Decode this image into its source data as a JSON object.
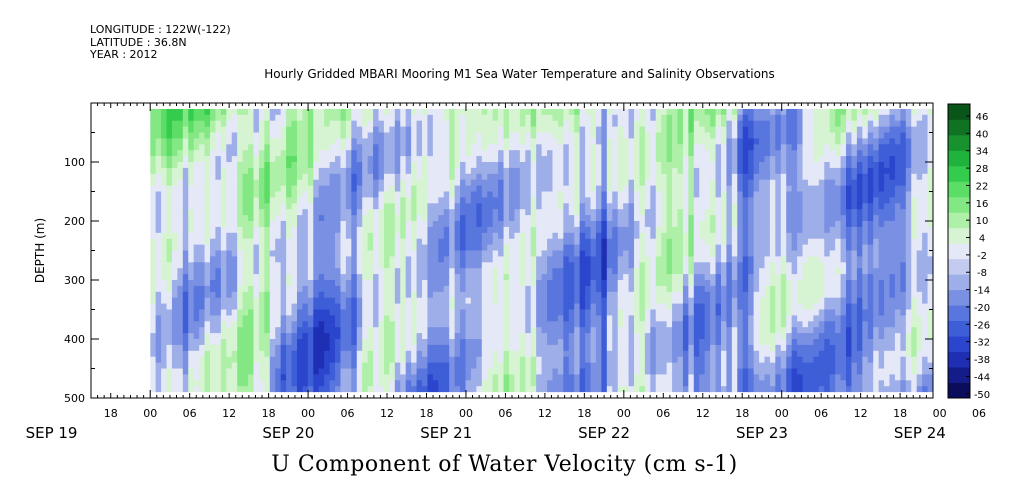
{
  "header": {
    "longitude": "LONGITUDE : 122W(-122)",
    "latitude": "LATITUDE : 36.8N",
    "year": "YEAR : 2012"
  },
  "chart_data": {
    "type": "heatmap",
    "title": "Hourly Gridded MBARI Mooring M1 Sea Water Temperature and Salinity Observations",
    "ylabel": "DEPTH (m)",
    "colorbar_label": "U Component of Water Velocity (cm s-1)",
    "y_axis": {
      "inverted": true,
      "range": [
        0,
        500
      ],
      "ticks": [
        100,
        200,
        300,
        400,
        500
      ],
      "tick_labels": [
        "100",
        "200",
        "300",
        "400",
        "500"
      ],
      "data_range": [
        10,
        490
      ]
    },
    "x_axis": {
      "start": "2012-09-19T15:00",
      "end": "2012-09-24T23:00",
      "data_start": "2012-09-20T00:00",
      "hour_labels": [
        "18",
        "00",
        "06",
        "12",
        "18",
        "00",
        "06",
        "12",
        "18",
        "00",
        "06",
        "12",
        "18",
        "00",
        "06",
        "12",
        "18",
        "00",
        "06",
        "12",
        "18",
        "00",
        "06",
        "12",
        "18"
      ],
      "day_labels": [
        "SEP 19",
        "SEP 20",
        "SEP 21",
        "SEP 22",
        "SEP 23",
        "SEP 24"
      ]
    },
    "colorbar": {
      "levels": [
        -50,
        -44,
        -38,
        -32,
        -26,
        -20,
        -14,
        -8,
        -2,
        4,
        10,
        16,
        22,
        28,
        34,
        40,
        46
      ],
      "tick_labels": [
        "46",
        "40",
        "34",
        "28",
        "22",
        "16",
        "10",
        "4",
        "-2",
        "-8",
        "-14",
        "-20",
        "-26",
        "-32",
        "-38",
        "-44",
        "-50"
      ],
      "colors_low": [
        "#0c0c5c",
        "#131c88",
        "#1e2fb4",
        "#2b45cc",
        "#3e5ed8",
        "#5876dd",
        "#7a90e2",
        "#9eaee8",
        "#c3ccf0",
        "#e4e8f7"
      ],
      "colors_high": [
        "#d7f4d2",
        "#aef0a8",
        "#83e884",
        "#5cdd66",
        "#34cc4d",
        "#1fb23c",
        "#17922f",
        "#107324",
        "#0a561a"
      ]
    },
    "grid": false,
    "description_values": "U velocity mostly between -20 and +30 cm/s; positive (green) near surface and in bands on Sep 20-22; negative (blue) at depth on Sep 21, 23 and 24"
  }
}
